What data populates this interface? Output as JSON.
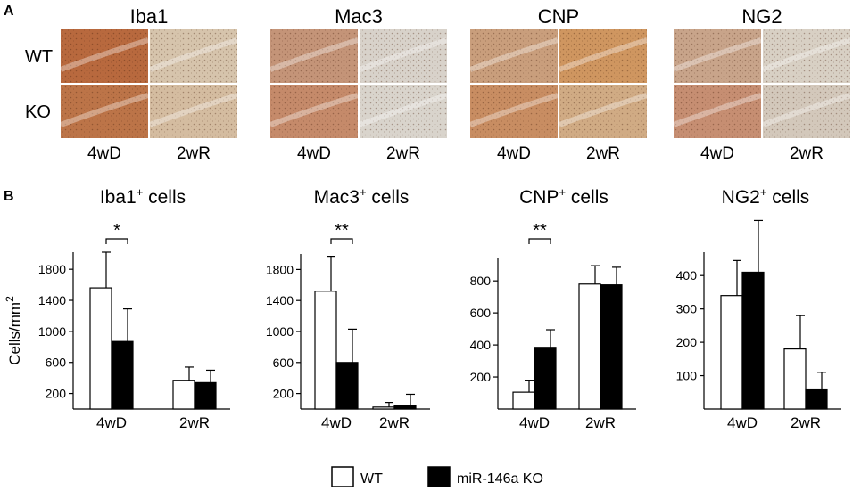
{
  "panel_a": {
    "label": "A",
    "row_labels": [
      "WT",
      "KO"
    ],
    "column_labels": [
      "4wD",
      "2wR"
    ],
    "stains": [
      {
        "title": "Iba1",
        "tones": [
          [
            "#b8693e",
            "#d6c4ac"
          ],
          [
            "#bc7448",
            "#d4bca0"
          ]
        ]
      },
      {
        "title": "Mac3",
        "tones": [
          [
            "#c49478",
            "#d8d2ca"
          ],
          [
            "#c58a6a",
            "#d9d4cc"
          ]
        ]
      },
      {
        "title": "CNP",
        "tones": [
          [
            "#c99e7c",
            "#cf9660"
          ],
          [
            "#c88d62",
            "#d0ab84"
          ]
        ]
      },
      {
        "title": "NG2",
        "tones": [
          [
            "#c8a48a",
            "#d8d0c4"
          ],
          [
            "#c68e72",
            "#d3c8bb"
          ]
        ]
      }
    ]
  },
  "panel_b": {
    "label": "B"
  },
  "legend": {
    "items": [
      {
        "label": "WT",
        "fill": "#ffffff"
      },
      {
        "label": "miR-146a KO",
        "fill": "#000000"
      }
    ]
  },
  "chart_data": [
    {
      "type": "bar",
      "title": "Iba1",
      "title_sup": "+",
      "title_suffix": "cells",
      "ylabel": "Cells/mm",
      "ylabel_sup": "2",
      "categories": [
        "4wD",
        "2wR"
      ],
      "series": [
        {
          "name": "WT",
          "values": [
            1560,
            370
          ],
          "errors": [
            460,
            170
          ]
        },
        {
          "name": "miR-146a KO",
          "values": [
            870,
            340
          ],
          "errors": [
            420,
            160
          ]
        }
      ],
      "ylim": [
        0,
        2020
      ],
      "yticks": [
        200,
        600,
        1000,
        1400,
        1800
      ],
      "significance": [
        {
          "category": 0,
          "label": "*"
        }
      ]
    },
    {
      "type": "bar",
      "title": "Mac3",
      "title_sup": "+",
      "title_suffix": "cells",
      "categories": [
        "4wD",
        "2wR"
      ],
      "series": [
        {
          "name": "WT",
          "values": [
            1520,
            25
          ],
          "errors": [
            450,
            60
          ]
        },
        {
          "name": "miR-146a KO",
          "values": [
            600,
            40
          ],
          "errors": [
            430,
            150
          ]
        }
      ],
      "ylim": [
        0,
        2000
      ],
      "yticks": [
        200,
        600,
        1000,
        1400,
        1800
      ],
      "significance": [
        {
          "category": 0,
          "label": "**"
        }
      ]
    },
    {
      "type": "bar",
      "title": "CNP",
      "title_sup": "+",
      "title_suffix": "cells",
      "categories": [
        "4wD",
        "2wR"
      ],
      "series": [
        {
          "name": "WT",
          "values": [
            105,
            780
          ],
          "errors": [
            75,
            115
          ]
        },
        {
          "name": "miR-146a KO",
          "values": [
            385,
            775
          ],
          "errors": [
            110,
            110
          ]
        }
      ],
      "ylim": [
        0,
        940
      ],
      "yticks": [
        200,
        400,
        600,
        800
      ],
      "significance": [
        {
          "category": 0,
          "label": "**"
        }
      ]
    },
    {
      "type": "bar",
      "title": "NG2",
      "title_sup": "+",
      "title_suffix": "cells",
      "categories": [
        "4wD",
        "2wR"
      ],
      "series": [
        {
          "name": "WT",
          "values": [
            340,
            180
          ],
          "errors": [
            105,
            100
          ]
        },
        {
          "name": "miR-146a KO",
          "values": [
            410,
            60
          ],
          "errors": [
            155,
            50
          ]
        }
      ],
      "ylim": [
        0,
        470
      ],
      "yticks": [
        100,
        200,
        300,
        400
      ],
      "significance": []
    }
  ]
}
